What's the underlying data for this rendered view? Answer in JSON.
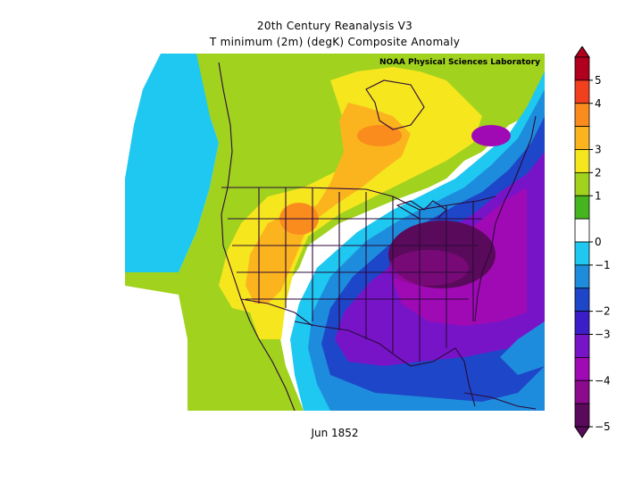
{
  "header": {
    "line1": "20th Century Reanalysis V3",
    "line2": "T minimum (2m) (degK) Composite Anomaly",
    "credit": "NOAA Physical Sciences Laboratory"
  },
  "footer": {
    "date": "Jun 1852"
  },
  "colorbar": {
    "labels": [
      "5",
      "4",
      "3",
      "2",
      "1",
      "0",
      "−1",
      "−2",
      "−3",
      "−4",
      "−5"
    ],
    "colors": [
      "#b0001e",
      "#f0401e",
      "#fa8c1e",
      "#fcb41e",
      "#f5e61e",
      "#a0d21e",
      "#46b41e",
      "#ffffff",
      "#1ec8f0",
      "#1e8cdc",
      "#1e46c8",
      "#3c1ec8",
      "#7814c8",
      "#a00ab4",
      "#8c0a8c",
      "#5a0a5a"
    ]
  }
}
